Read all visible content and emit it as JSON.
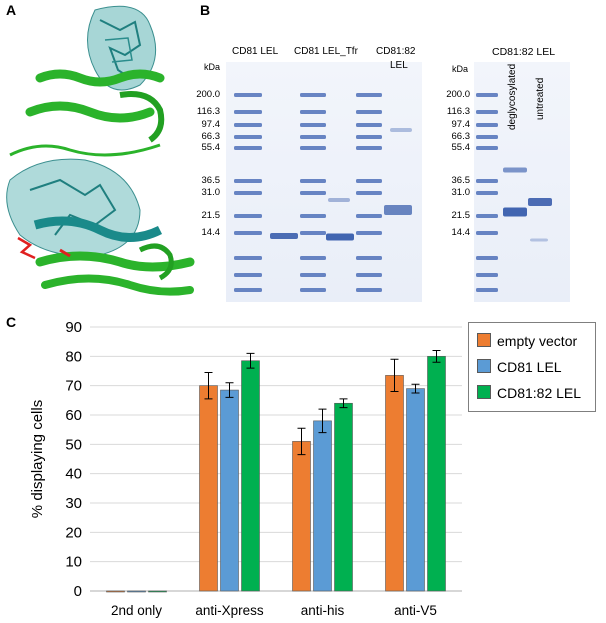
{
  "panels": {
    "a": "A",
    "b": "B",
    "c": "C"
  },
  "gel1": {
    "kda_unit": "kDa",
    "ladder": [
      "200.0",
      "116.3",
      "97.4",
      "66.3",
      "55.4",
      "36.5",
      "31.0",
      "21.5",
      "14.4"
    ],
    "lanes": [
      "CD81 LEL",
      "CD81 LEL_Tfr",
      "CD81:82",
      "LEL"
    ]
  },
  "gel2": {
    "title": "CD81:82 LEL",
    "kda_unit": "kDa",
    "ladder": [
      "200.0",
      "116.3",
      "97.4",
      "66.3",
      "55.4",
      "36.5",
      "31.0",
      "21.5",
      "14.4"
    ],
    "lanes": [
      "deglycosylated",
      "untreated"
    ]
  },
  "chart_data": {
    "type": "bar",
    "ylabel": "% displaying cells",
    "ylim": [
      0,
      90
    ],
    "yticks": [
      0,
      10,
      20,
      30,
      40,
      50,
      60,
      70,
      80,
      90
    ],
    "categories": [
      "2nd only",
      "anti-Xpress",
      "anti-his",
      "anti-V5"
    ],
    "legend_position": "top-right",
    "series": [
      {
        "name": "empty vector",
        "color": "#ed7d31",
        "values": [
          0,
          70,
          51,
          73.5
        ],
        "errors": [
          0,
          4.5,
          4.5,
          5.5
        ]
      },
      {
        "name": "CD81 LEL",
        "color": "#5b9bd5",
        "values": [
          0,
          68.5,
          58,
          69
        ],
        "errors": [
          0,
          2.5,
          4,
          1.5
        ]
      },
      {
        "name": "CD81:82 LEL",
        "color": "#00b050",
        "values": [
          0,
          78.5,
          64,
          80
        ],
        "errors": [
          0,
          2.5,
          1.5,
          2
        ]
      }
    ]
  }
}
